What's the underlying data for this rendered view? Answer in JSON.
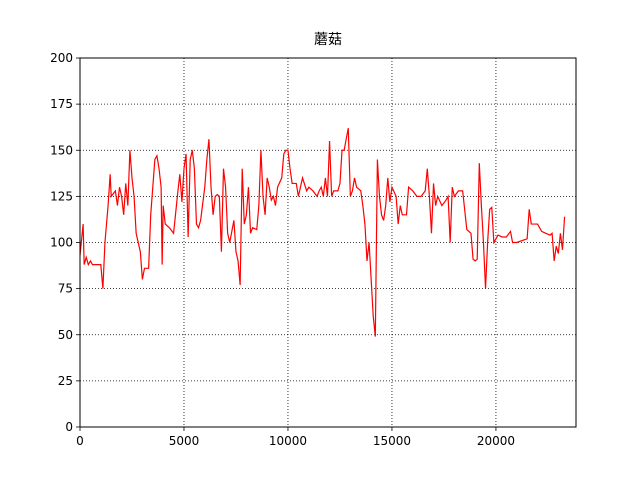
{
  "chart_data": {
    "type": "line",
    "title": "蘑菇",
    "x": [
      0,
      150,
      200,
      300,
      400,
      500,
      600,
      1000,
      1100,
      1200,
      1350,
      1450,
      1500,
      1700,
      1800,
      1900,
      2000,
      2100,
      2200,
      2300,
      2400,
      2500,
      2600,
      2700,
      2800,
      2900,
      3000,
      3100,
      3300,
      3400,
      3500,
      3600,
      3700,
      3800,
      3900,
      3950,
      4000,
      4100,
      4300,
      4500,
      4700,
      4800,
      4900,
      5000,
      5100,
      5200,
      5300,
      5400,
      5500,
      5600,
      5700,
      5800,
      6000,
      6100,
      6200,
      6300,
      6400,
      6500,
      6600,
      6700,
      6800,
      6900,
      7000,
      7100,
      7200,
      7400,
      7500,
      7600,
      7700,
      7800,
      7900,
      8000,
      8100,
      8200,
      8300,
      8500,
      8600,
      8700,
      8800,
      8900,
      9000,
      9100,
      9200,
      9300,
      9400,
      9500,
      9700,
      9800,
      9900,
      10000,
      10100,
      10200,
      10400,
      10500,
      10700,
      10900,
      11000,
      11200,
      11400,
      11500,
      11600,
      11700,
      11800,
      11900,
      12000,
      12100,
      12200,
      12400,
      12500,
      12600,
      12700,
      12800,
      12900,
      13000,
      13100,
      13200,
      13300,
      13500,
      13600,
      13700,
      13800,
      13900,
      14000,
      14100,
      14200,
      14300,
      14400,
      14500,
      14600,
      14700,
      14800,
      14900,
      15000,
      15200,
      15300,
      15400,
      15500,
      15700,
      15800,
      16000,
      16200,
      16400,
      16600,
      16700,
      16800,
      16900,
      17000,
      17100,
      17200,
      17400,
      17600,
      17700,
      17800,
      17900,
      18000,
      18200,
      18400,
      18600,
      18800,
      18900,
      19000,
      19100,
      19200,
      19300,
      19400,
      19500,
      19600,
      19700,
      19800,
      19900,
      20000,
      20100,
      20300,
      20500,
      20700,
      20800,
      21000,
      21500,
      21600,
      21700,
      22000,
      22200,
      22400,
      22600,
      22700,
      22800,
      22900,
      23000,
      23100,
      23200,
      23300
    ],
    "series": [
      {
        "color": "#ff0000",
        "values": [
          93,
          110,
          88,
          92,
          88,
          90,
          88,
          88,
          75,
          100,
          120,
          137,
          125,
          128,
          120,
          130,
          125,
          115,
          132,
          120,
          150,
          135,
          125,
          105,
          100,
          95,
          80,
          86,
          86,
          115,
          130,
          145,
          147,
          140,
          130,
          88,
          120,
          110,
          108,
          105,
          127,
          137,
          122,
          140,
          148,
          103,
          145,
          150,
          140,
          110,
          108,
          112,
          130,
          145,
          156,
          130,
          115,
          125,
          126,
          125,
          95,
          140,
          130,
          105,
          100,
          112,
          95,
          90,
          77,
          140,
          110,
          115,
          130,
          105,
          108,
          107,
          120,
          150,
          125,
          115,
          135,
          130,
          123,
          125,
          120,
          130,
          135,
          148,
          150,
          150,
          140,
          132,
          132,
          125,
          135,
          128,
          130,
          128,
          125,
          128,
          130,
          125,
          135,
          125,
          155,
          125,
          128,
          128,
          132,
          150,
          150,
          156,
          162,
          125,
          128,
          135,
          130,
          128,
          120,
          110,
          90,
          100,
          80,
          60,
          49,
          145,
          125,
          115,
          112,
          120,
          135,
          122,
          130,
          125,
          110,
          120,
          115,
          115,
          130,
          128,
          125,
          125,
          128,
          140,
          125,
          105,
          132,
          120,
          125,
          120,
          123,
          125,
          100,
          130,
          125,
          128,
          128,
          107,
          105,
          91,
          90,
          91,
          143,
          120,
          100,
          75,
          100,
          118,
          119,
          100,
          102,
          104,
          103,
          103,
          106,
          100,
          100,
          102,
          118,
          110,
          110,
          106,
          105,
          104,
          105,
          90,
          98,
          94,
          105,
          96,
          114
        ]
      }
    ],
    "xlim": [
      0,
      23850
    ],
    "ylim": [
      0,
      200
    ],
    "xticks": [
      0,
      5000,
      10000,
      15000,
      20000
    ],
    "yticks": [
      0,
      25,
      50,
      75,
      100,
      125,
      150,
      175,
      200
    ],
    "grid": true
  }
}
